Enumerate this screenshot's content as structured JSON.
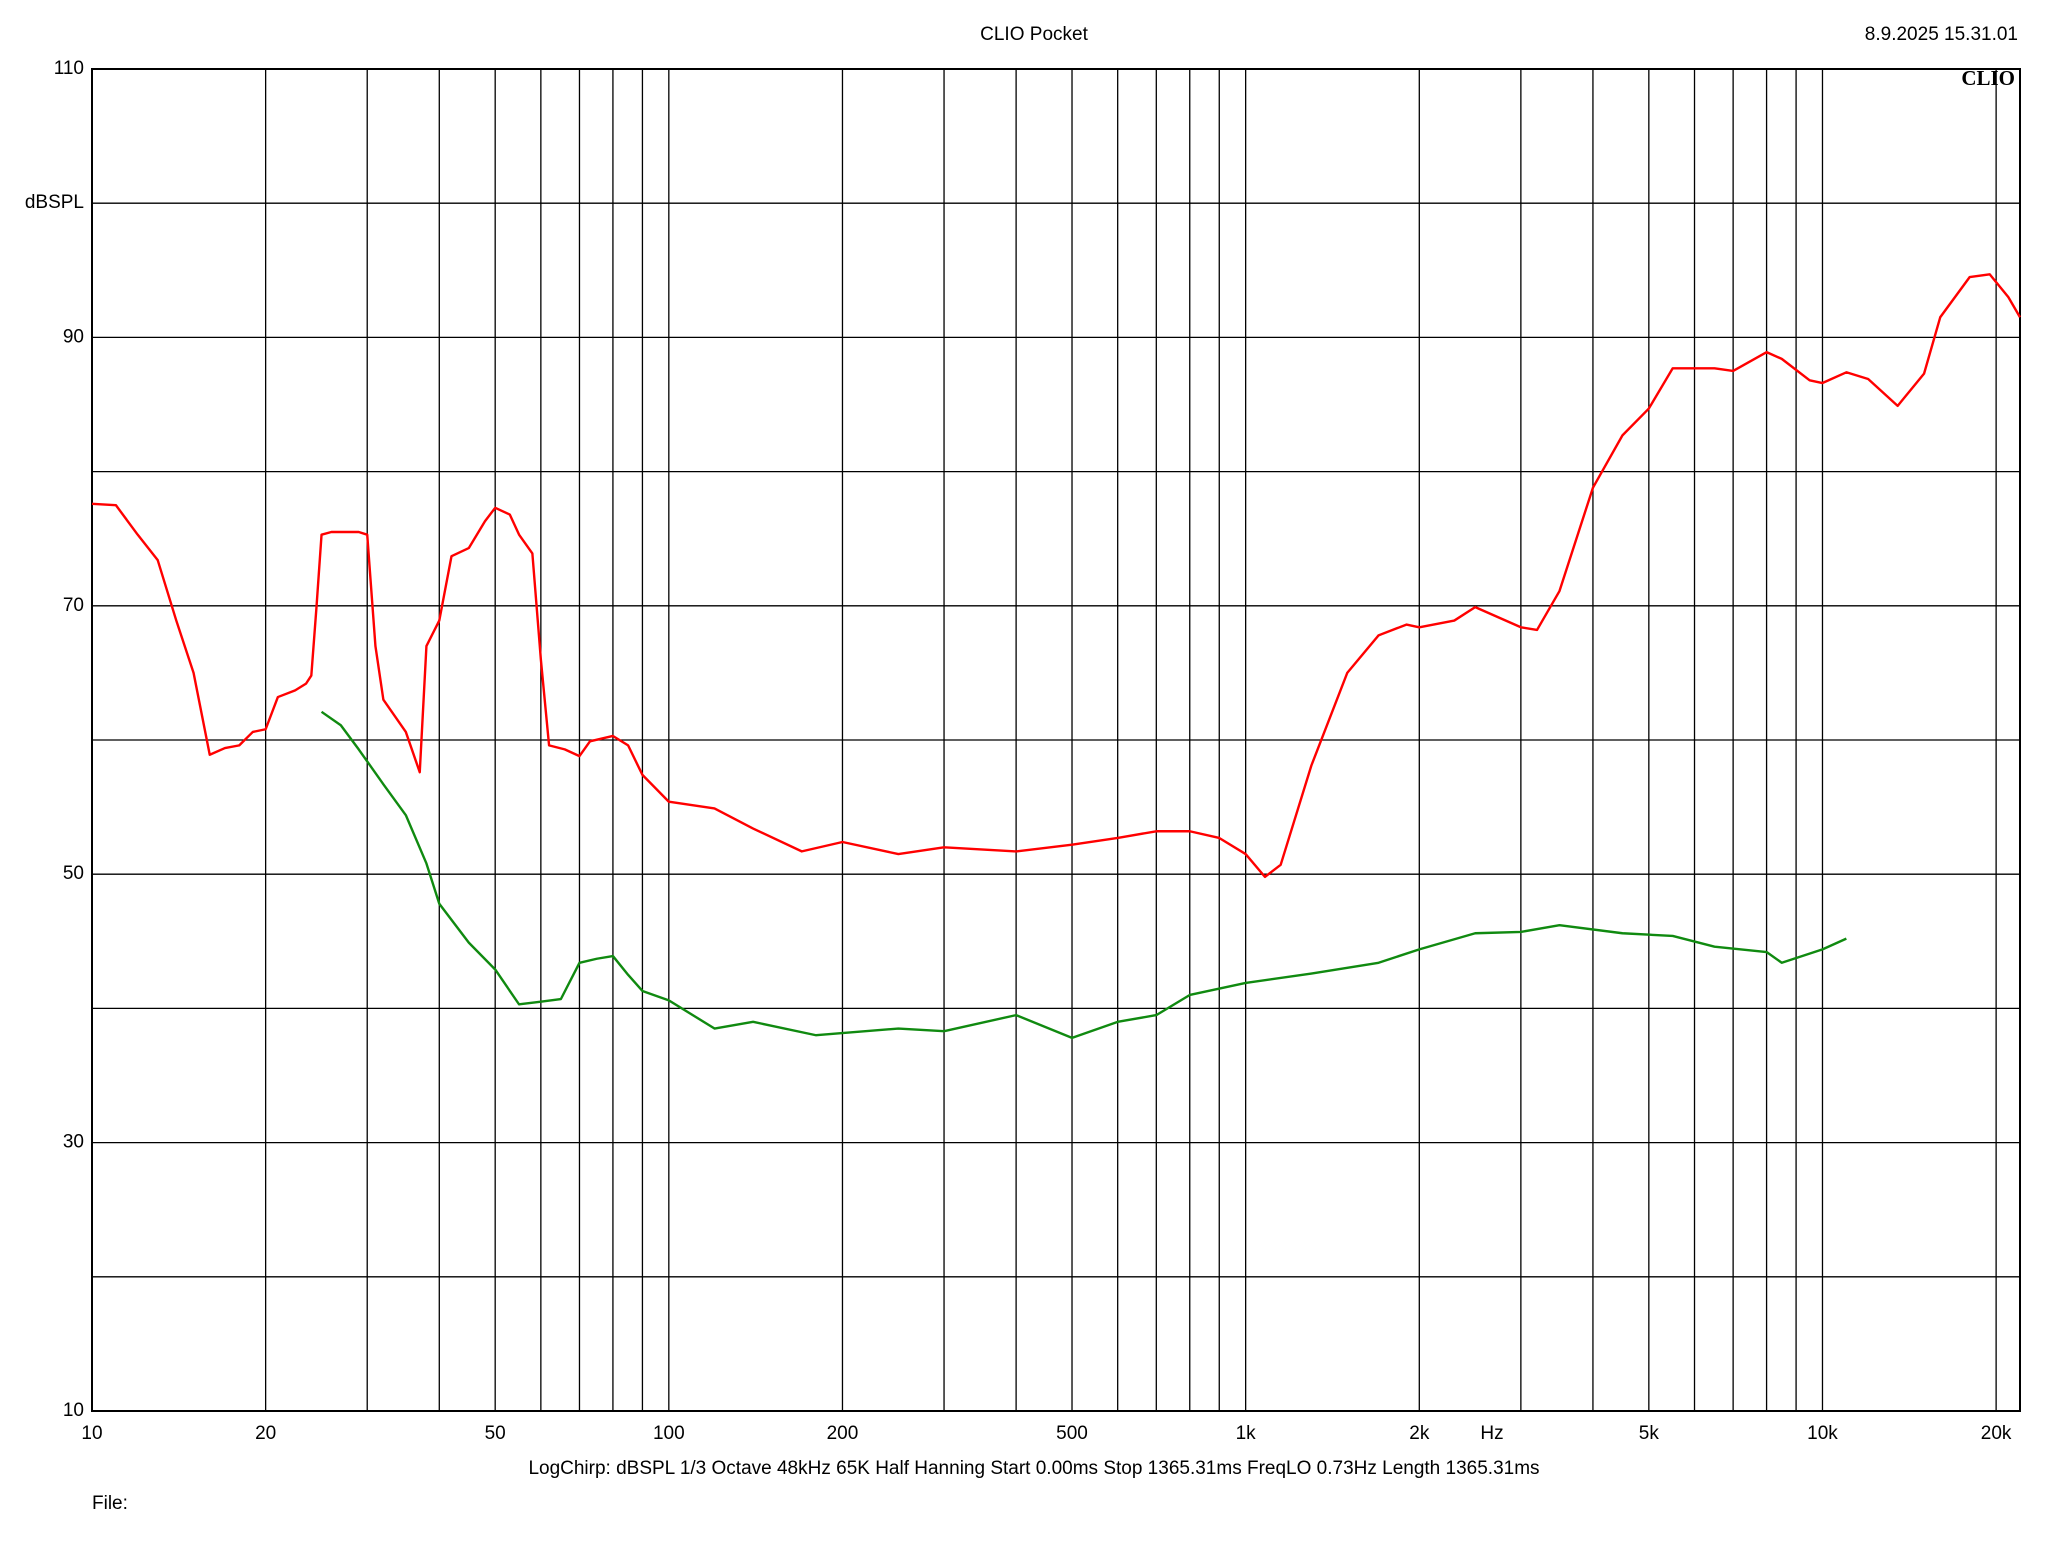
{
  "chart_data": {
    "type": "line",
    "title": "CLIO Pocket",
    "timestamp": "8.9.2025 15.31.01",
    "logo": "CLIO",
    "ylabel": "dBSPL",
    "xlabel": "Hz",
    "footer": "LogChirp:  dBSPL   1/3 Octave   48kHz   65K   Half Hanning   Start 0.00ms    Stop 1365.31ms    FreqLO 0.73Hz    Length 1365.31ms",
    "file_label": "File:",
    "xscale": "log",
    "grid": true,
    "xlim": [
      10,
      22000
    ],
    "ylim": [
      10,
      110
    ],
    "xticks": [
      10,
      20,
      50,
      100,
      200,
      500,
      {
        "value": 1000,
        "label": "1k"
      },
      {
        "value": 2000,
        "label": "2k"
      },
      {
        "value": 5000,
        "label": "5k"
      },
      {
        "value": 10000,
        "label": "10k"
      },
      {
        "value": 20000,
        "label": "20k"
      }
    ],
    "xgrid": [
      30,
      40,
      60,
      70,
      80,
      90,
      300,
      400,
      600,
      700,
      800,
      900,
      3000,
      4000,
      6000,
      7000,
      8000,
      9000
    ],
    "yticks": [
      10,
      30,
      50,
      70,
      90,
      110
    ],
    "ygrid": [
      20,
      40,
      60,
      80,
      100
    ],
    "series": [
      {
        "color": "#ff0000",
        "x": [
          10,
          11,
          12,
          13,
          14,
          15,
          16,
          17,
          18,
          19,
          20,
          21,
          22.5,
          23.5,
          24,
          24.5,
          25,
          26,
          29,
          30,
          31,
          32,
          35,
          37,
          38,
          40,
          42,
          45,
          48,
          50,
          53,
          55,
          58,
          60,
          62,
          66,
          70,
          73,
          80,
          85,
          90,
          100,
          120,
          140,
          170,
          200,
          250,
          300,
          400,
          500,
          600,
          700,
          800,
          900,
          1000,
          1080,
          1150,
          1300,
          1500,
          1700,
          1900,
          2000,
          2300,
          2500,
          3000,
          3200,
          3500,
          4000,
          4500,
          5000,
          5500,
          6500,
          7000,
          8000,
          8500,
          9500,
          10000,
          11000,
          12000,
          13500,
          15000,
          16000,
          18000,
          19500,
          21000,
          22000
        ],
        "values": [
          77.6,
          77.5,
          75.3,
          73.4,
          68.9,
          65.0,
          58.9,
          59.4,
          59.6,
          60.6,
          60.8,
          63.2,
          63.7,
          64.2,
          64.8,
          69.9,
          75.3,
          75.5,
          75.5,
          75.3,
          67.0,
          63.0,
          60.6,
          57.6,
          67.0,
          68.9,
          73.7,
          74.3,
          76.3,
          77.3,
          76.8,
          75.3,
          73.9,
          66.0,
          59.6,
          59.3,
          58.8,
          59.9,
          60.3,
          59.6,
          57.4,
          55.4,
          54.9,
          53.4,
          51.7,
          52.4,
          51.5,
          52.0,
          51.7,
          52.2,
          52.7,
          53.2,
          53.2,
          52.7,
          51.5,
          49.8,
          50.7,
          58.1,
          65.0,
          67.8,
          68.6,
          68.4,
          68.9,
          69.9,
          68.4,
          68.2,
          71.1,
          78.8,
          82.7,
          84.7,
          87.7,
          87.7,
          87.5,
          88.9,
          88.4,
          86.8,
          86.6,
          87.4,
          86.9,
          84.9,
          87.3,
          91.5,
          94.5,
          94.7,
          93.0,
          91.5
        ]
      },
      {
        "color": "#108a10",
        "x": [
          25,
          27,
          29,
          32,
          35,
          38,
          40,
          45,
          50,
          55,
          60,
          65,
          70,
          75,
          80,
          85,
          90,
          100,
          120,
          140,
          180,
          250,
          300,
          400,
          500,
          600,
          700,
          800,
          1000,
          1300,
          1700,
          2000,
          2500,
          3000,
          3500,
          4500,
          5500,
          6500,
          8000,
          8500,
          10000,
          11000
        ],
        "values": [
          62.1,
          61.1,
          59.3,
          56.7,
          54.4,
          50.8,
          47.8,
          44.9,
          42.9,
          40.3,
          40.5,
          40.7,
          43.4,
          43.7,
          43.9,
          42.5,
          41.3,
          40.6,
          38.5,
          39.0,
          38.0,
          38.5,
          38.3,
          39.5,
          37.8,
          39.0,
          39.5,
          41.0,
          41.9,
          42.6,
          43.4,
          44.4,
          45.6,
          45.7,
          46.2,
          45.6,
          45.4,
          44.6,
          44.2,
          43.4,
          44.4,
          45.2
        ]
      }
    ]
  }
}
